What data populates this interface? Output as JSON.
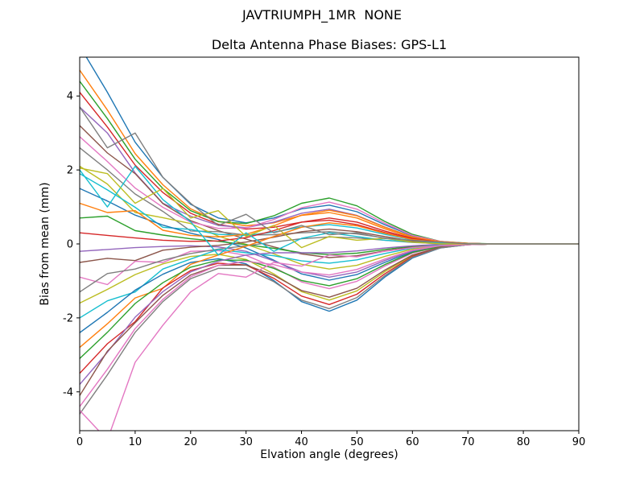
{
  "figure": {
    "background": "#ffffff",
    "suptitle": "JAVTRIUMPH_1MR  NONE"
  },
  "chart_data": {
    "type": "line",
    "title": "Delta Antenna Phase Biases: GPS-L1",
    "xlabel": "Elvation angle (degrees)",
    "ylabel": "Bias from mean (mm)",
    "xlim": [
      0,
      90
    ],
    "ylim": [
      -5.05,
      5.05
    ],
    "xticks": [
      0,
      10,
      20,
      30,
      40,
      50,
      60,
      70,
      80,
      90
    ],
    "yticks": [
      -4,
      -2,
      0,
      2,
      4
    ],
    "grid": false,
    "legend": "none",
    "x": [
      0,
      5,
      10,
      15,
      20,
      25,
      30,
      35,
      40,
      45,
      50,
      55,
      60,
      65,
      70,
      75,
      80,
      85,
      90
    ],
    "series": [
      {
        "color": "#1f77b4",
        "y": [
          5.35,
          4.1,
          2.75,
          1.8,
          1.07,
          0.7,
          0.57,
          0.7,
          0.95,
          1.05,
          0.87,
          0.52,
          0.22,
          0.06,
          0.01,
          0,
          0,
          0,
          0
        ]
      },
      {
        "color": "#ff7f0e",
        "y": [
          4.7,
          3.62,
          2.44,
          1.6,
          0.95,
          0.61,
          0.49,
          0.57,
          0.77,
          0.85,
          0.7,
          0.41,
          0.17,
          0.05,
          0.01,
          0,
          0,
          0,
          0
        ]
      },
      {
        "color": "#2ca02c",
        "y": [
          4.4,
          3.39,
          2.29,
          1.5,
          0.9,
          0.6,
          0.55,
          0.76,
          1.1,
          1.24,
          1.03,
          0.61,
          0.26,
          0.07,
          0.02,
          0,
          0,
          0,
          0
        ]
      },
      {
        "color": "#d62728",
        "y": [
          4.1,
          3.16,
          2.13,
          1.39,
          0.83,
          0.53,
          0.4,
          0.45,
          0.59,
          0.64,
          0.52,
          0.31,
          0.13,
          0.04,
          0.01,
          0,
          0,
          0,
          0
        ]
      },
      {
        "color": "#9467bd",
        "y": [
          3.7,
          3.0,
          1.92,
          1.1,
          0.75,
          0.5,
          0.44,
          0.59,
          0.83,
          0.94,
          0.77,
          0.46,
          0.19,
          0.06,
          0.01,
          0,
          0,
          0,
          0
        ]
      },
      {
        "color": "#8c564b",
        "y": [
          3.2,
          2.46,
          1.9,
          1.09,
          0.63,
          0.36,
          0.13,
          -0.08,
          -0.27,
          -0.37,
          -0.32,
          -0.19,
          -0.08,
          -0.02,
          -0.01,
          0,
          0,
          0,
          0
        ]
      },
      {
        "color": "#e377c2",
        "y": [
          2.9,
          2.23,
          1.51,
          0.99,
          0.59,
          0.42,
          0.43,
          0.66,
          0.98,
          1.13,
          0.94,
          0.56,
          0.23,
          0.07,
          0.01,
          0,
          0,
          0,
          0
        ]
      },
      {
        "color": "#7f7f7f",
        "y": [
          2.6,
          2.0,
          1.35,
          0.88,
          0.35,
          0.33,
          0.24,
          0.25,
          0.3,
          0.33,
          0.27,
          0.16,
          0.07,
          0.02,
          0,
          0,
          0,
          0,
          0
        ]
      },
      {
        "color": "#bcbd22",
        "y": [
          2.1,
          1.62,
          0.85,
          0.71,
          0.55,
          0.21,
          -0.01,
          -0.27,
          -0.55,
          -0.68,
          -0.58,
          -0.34,
          -0.14,
          -0.04,
          -0.01,
          0,
          0,
          0,
          0
        ]
      },
      {
        "color": "#17becf",
        "y": [
          1.9,
          1.46,
          0.99,
          0.45,
          0.39,
          0.26,
          0.23,
          0.32,
          0.46,
          0.52,
          0.43,
          0.26,
          0.11,
          0.03,
          0.01,
          0,
          0,
          0,
          0
        ]
      },
      {
        "color": "#1f77b4",
        "y": [
          1.5,
          1.16,
          0.78,
          0.51,
          0.29,
          0.12,
          -0.11,
          -0.44,
          -0.81,
          -0.98,
          -0.83,
          -0.5,
          -0.21,
          -0.06,
          -0.01,
          0,
          0,
          0,
          0
        ]
      },
      {
        "color": "#ff7f0e",
        "y": [
          1.1,
          0.85,
          0.9,
          0.37,
          0.23,
          0.19,
          0.26,
          0.49,
          0.78,
          0.91,
          0.76,
          0.45,
          0.19,
          0.06,
          0.01,
          0,
          0,
          0,
          0
        ]
      },
      {
        "color": "#2ca02c",
        "y": [
          0.7,
          0.75,
          0.36,
          0.24,
          0.14,
          0.07,
          -0.02,
          -0.12,
          -0.24,
          -0.29,
          -0.25,
          -0.15,
          -0.06,
          -0.02,
          0,
          0,
          0,
          0,
          0
        ]
      },
      {
        "color": "#d62728",
        "y": [
          0.3,
          0.23,
          0.16,
          0.1,
          0.07,
          0.08,
          0.17,
          0.36,
          0.59,
          0.7,
          0.59,
          0.35,
          0.15,
          0.04,
          0.01,
          0,
          0,
          0,
          0
        ]
      },
      {
        "color": "#9467bd",
        "y": [
          -0.2,
          -0.15,
          -0.1,
          -0.07,
          -0.05,
          -0.08,
          -0.2,
          -0.46,
          -0.76,
          -0.9,
          -0.76,
          -0.45,
          -0.19,
          -0.06,
          -0.01,
          0,
          0,
          0,
          0
        ]
      },
      {
        "color": "#8c564b",
        "y": [
          -0.5,
          -0.39,
          -0.45,
          -0.17,
          -0.09,
          -0.04,
          0.05,
          0.18,
          0.33,
          0.4,
          0.33,
          0.2,
          0.08,
          0.02,
          0,
          0,
          0,
          0,
          0
        ]
      },
      {
        "color": "#e377c2",
        "y": [
          -0.9,
          -1.1,
          -0.47,
          -0.5,
          -0.2,
          -0.18,
          -0.31,
          -0.63,
          -1.03,
          -1.21,
          -1.01,
          -0.6,
          -0.25,
          -0.07,
          -0.02,
          0,
          0,
          0,
          0
        ]
      },
      {
        "color": "#7f7f7f",
        "y": [
          -1.3,
          -0.8,
          -0.68,
          -0.44,
          -0.26,
          -0.14,
          -0.05,
          0.05,
          0.14,
          0.19,
          0.16,
          0.1,
          0.04,
          0.01,
          0,
          0,
          0,
          0,
          0
        ]
      },
      {
        "color": "#bcbd22",
        "y": [
          -1.6,
          -1.23,
          -0.83,
          -0.54,
          -0.34,
          -0.28,
          -0.42,
          -0.81,
          -1.29,
          -1.52,
          -1.27,
          -0.75,
          -0.32,
          -0.09,
          -0.02,
          0,
          0,
          0,
          0
        ]
      },
      {
        "color": "#17becf",
        "y": [
          -2.0,
          -1.54,
          -1.3,
          -0.68,
          -0.41,
          -0.15,
          -0.24,
          -0.32,
          -0.46,
          -0.52,
          -0.43,
          -0.26,
          -0.11,
          -0.03,
          -0.01,
          0,
          0,
          0,
          0
        ]
      },
      {
        "color": "#1f77b4",
        "y": [
          -2.4,
          -1.85,
          -1.25,
          -0.82,
          -0.5,
          -0.4,
          -0.54,
          -0.99,
          -1.56,
          -1.82,
          -1.52,
          -0.9,
          -0.38,
          -0.11,
          -0.02,
          0,
          0,
          0,
          0
        ]
      },
      {
        "color": "#ff7f0e",
        "y": [
          -2.8,
          -2.16,
          -1.46,
          -1.2,
          -0.55,
          -0.3,
          -0.06,
          0.2,
          0.45,
          0.57,
          0.49,
          0.29,
          0.12,
          0.04,
          0.01,
          0,
          0,
          0,
          0
        ]
      },
      {
        "color": "#2ca02c",
        "y": [
          -3.1,
          -2.39,
          -1.61,
          -1.05,
          -0.63,
          -0.44,
          -0.44,
          -0.66,
          -0.99,
          -1.13,
          -0.94,
          -0.56,
          -0.23,
          -0.07,
          -0.01,
          0,
          0,
          0,
          0
        ]
      },
      {
        "color": "#d62728",
        "y": [
          -3.5,
          -2.7,
          -2.1,
          -1.19,
          -0.72,
          -0.52,
          -0.57,
          -0.93,
          -1.41,
          -1.64,
          -1.36,
          -0.81,
          -0.34,
          -0.1,
          -0.02,
          0,
          0,
          0,
          0
        ]
      },
      {
        "color": "#9467bd",
        "y": [
          -3.8,
          -2.93,
          -1.98,
          -1.29,
          -0.76,
          -0.47,
          -0.3,
          -0.24,
          -0.24,
          -0.24,
          -0.19,
          -0.11,
          -0.05,
          -0.01,
          0,
          0,
          0,
          0,
          0
        ]
      },
      {
        "color": "#8c564b",
        "y": [
          -4.1,
          -2.9,
          -2.13,
          -1.39,
          -0.84,
          -0.58,
          -0.57,
          -0.85,
          -1.26,
          -1.44,
          -1.2,
          -0.71,
          -0.3,
          -0.09,
          -0.02,
          0,
          0,
          0,
          0
        ]
      },
      {
        "color": "#e377c2",
        "y": [
          -4.4,
          -3.39,
          -2.29,
          -1.5,
          -0.89,
          -0.58,
          -0.47,
          -0.56,
          -0.76,
          -0.84,
          -0.69,
          -0.41,
          -0.17,
          -0.05,
          -0.01,
          0,
          0,
          0,
          0
        ]
      },
      {
        "color": "#7f7f7f",
        "y": [
          -4.6,
          -3.54,
          -2.39,
          -1.56,
          -0.94,
          -0.66,
          -0.67,
          -1.02,
          -1.52,
          -1.75,
          -1.45,
          -0.86,
          -0.36,
          -0.11,
          -0.02,
          0,
          0,
          0,
          0
        ]
      },
      {
        "color": "#17becf",
        "y": [
          2.0,
          1.0,
          2.1,
          1.2,
          0.6,
          -0.3,
          0.3,
          -0.2,
          0.15,
          0.3,
          0.2,
          0.1,
          0.05,
          0.02,
          0,
          0,
          0,
          0,
          0
        ]
      },
      {
        "color": "#e377c2",
        "y": [
          -4.5,
          -5.3,
          -3.2,
          -2.2,
          -1.3,
          -0.8,
          -0.9,
          -0.5,
          -0.6,
          -0.3,
          -0.35,
          -0.2,
          -0.1,
          -0.05,
          -0.02,
          0,
          0,
          0,
          0
        ]
      },
      {
        "color": "#bcbd22",
        "y": [
          2.05,
          1.9,
          1.1,
          1.5,
          0.7,
          0.9,
          0.2,
          0.5,
          -0.1,
          0.2,
          0.1,
          0.15,
          0.05,
          0,
          0,
          0,
          0,
          0,
          0
        ]
      },
      {
        "color": "#7f7f7f",
        "y": [
          3.7,
          2.6,
          3.0,
          1.8,
          1.1,
          0.5,
          0.8,
          0.3,
          0.5,
          0.25,
          0.3,
          0.15,
          0.1,
          0.05,
          0,
          0,
          0,
          0,
          0
        ]
      }
    ]
  }
}
